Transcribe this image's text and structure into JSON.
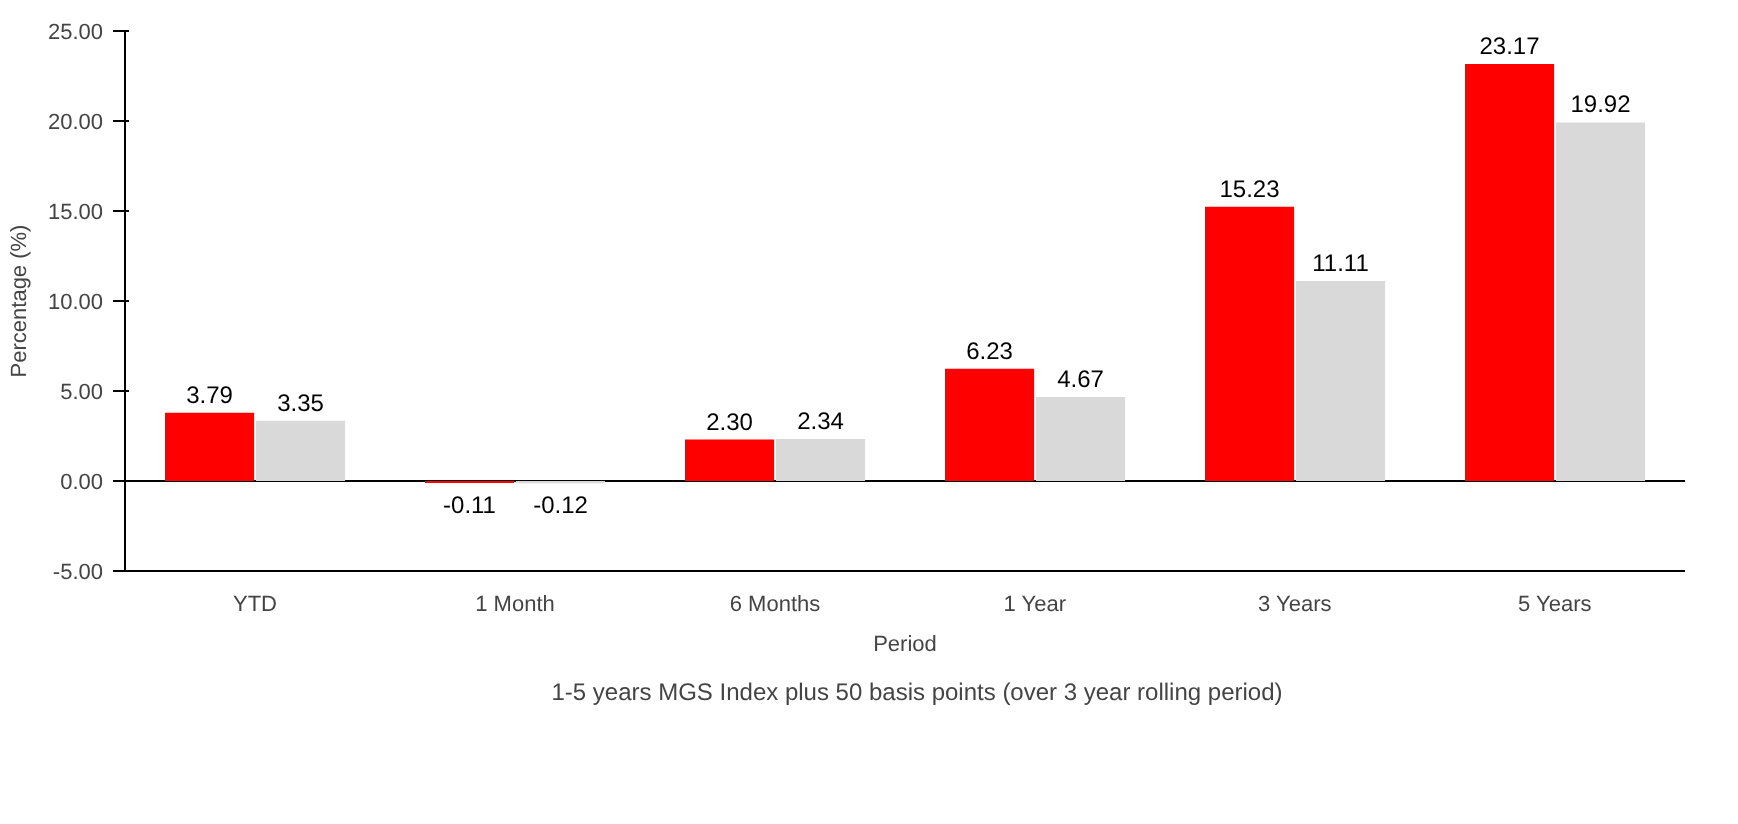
{
  "chart_data": {
    "type": "bar",
    "xlabel": "Period",
    "ylabel": "Percentage (%)",
    "categories": [
      "YTD",
      "1 Month",
      "6 Months",
      "1 Year",
      "3 Years",
      "5 Years"
    ],
    "series": [
      {
        "color": "#ff0000",
        "values": [
          3.79,
          -0.11,
          2.3,
          6.23,
          15.23,
          23.17
        ],
        "value_labels": [
          "3.79",
          "-0.11",
          "2.30",
          "6.23",
          "15.23",
          "23.17"
        ]
      },
      {
        "name": "1-5 years MGS Index plus 50 basis points (over 3 year rolling period)",
        "color": "#d9d9d9",
        "values": [
          3.35,
          -0.12,
          2.34,
          4.67,
          11.11,
          19.92
        ],
        "value_labels": [
          "3.35",
          "-0.12",
          "2.34",
          "4.67",
          "11.11",
          "19.92"
        ]
      }
    ],
    "ylim": [
      -5,
      25
    ],
    "yticks": [
      {
        "value": -5,
        "label": "-5.00"
      },
      {
        "value": 0,
        "label": "0.00"
      },
      {
        "value": 5,
        "label": "5.00"
      },
      {
        "value": 10,
        "label": "10.00"
      },
      {
        "value": 15,
        "label": "15.00"
      },
      {
        "value": 20,
        "label": "20.00"
      },
      {
        "value": 25,
        "label": "25.00"
      }
    ],
    "legend": "bottom"
  }
}
